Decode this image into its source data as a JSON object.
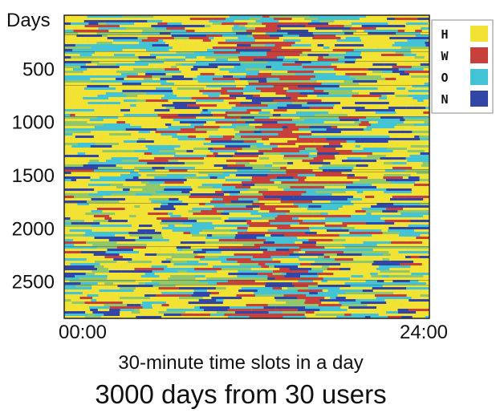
{
  "chart_data": {
    "type": "heatmap",
    "ylabel": "Days",
    "xlabel": "30-minute time slots in a day",
    "title": "3000 days from 30 users",
    "x_tick_labels": [
      "00:00",
      "24:00"
    ],
    "xlim": [
      0,
      48
    ],
    "y_ticks": [
      500,
      1000,
      1500,
      2000,
      2500
    ],
    "ylim": [
      0,
      2850
    ],
    "y_inverted": true,
    "categories": [
      {
        "label": "H",
        "color": "#f2e234"
      },
      {
        "label": "W",
        "color": "#c8403c"
      },
      {
        "label": "O",
        "color": "#44c3d4"
      },
      {
        "label": "N",
        "color": "#3246a8"
      }
    ],
    "background_color": "#8fc86c",
    "legend_position": "top-right",
    "grid": false
  }
}
